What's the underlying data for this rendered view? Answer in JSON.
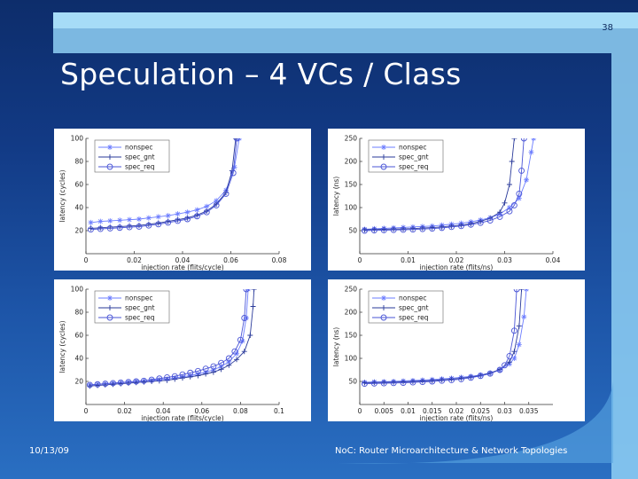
{
  "slide_number": "38",
  "title": "Speculation – 4 VCs / Class",
  "footer": {
    "date": "10/13/09",
    "text": "NoC: Router Microarchitecture & Network Topologies"
  },
  "colors": {
    "background_top": "#0d2d6b",
    "background_bottom": "#2a6fc2",
    "accent_light": "#8fd0f5",
    "series_nonspec": "#6b7cff",
    "series_spec_gnt": "#2a3a9a",
    "series_spec_req": "#4a55d6"
  },
  "chart_data": [
    {
      "type": "line",
      "xlabel": "injection rate (flits/cycle)",
      "ylabel": "latency (cycles)",
      "xlim": [
        0,
        0.08
      ],
      "ylim": [
        0,
        100
      ],
      "xticks": [
        "0",
        "0.02",
        "0.04",
        "0.06",
        "0.08"
      ],
      "yticks": [
        "20",
        "40",
        "60",
        "80",
        "100"
      ],
      "legend": "top-left",
      "series": [
        {
          "name": "nonspec",
          "marker": "star",
          "x": [
            0.002,
            0.006,
            0.01,
            0.014,
            0.018,
            0.022,
            0.026,
            0.03,
            0.034,
            0.038,
            0.042,
            0.046,
            0.05,
            0.054,
            0.058,
            0.0615,
            0.0635
          ],
          "y": [
            27,
            28,
            28.5,
            29,
            29.5,
            30,
            31,
            32,
            33,
            34.5,
            36,
            38,
            41,
            46,
            55,
            75,
            100
          ]
        },
        {
          "name": "spec_gnt",
          "marker": "plus",
          "x": [
            0.002,
            0.006,
            0.01,
            0.014,
            0.018,
            0.022,
            0.026,
            0.03,
            0.034,
            0.038,
            0.042,
            0.046,
            0.05,
            0.054,
            0.058,
            0.0605,
            0.062
          ],
          "y": [
            22,
            22.5,
            23,
            23.5,
            24,
            24.5,
            25.5,
            26.5,
            28,
            29.5,
            31,
            33.5,
            37,
            43,
            53,
            72,
            100
          ]
        },
        {
          "name": "spec_req",
          "marker": "circle",
          "x": [
            0.002,
            0.006,
            0.01,
            0.014,
            0.018,
            0.022,
            0.026,
            0.03,
            0.034,
            0.038,
            0.042,
            0.046,
            0.05,
            0.054,
            0.058,
            0.061,
            0.0625
          ],
          "y": [
            21,
            21.5,
            22,
            22.5,
            23,
            23.5,
            24.5,
            25.5,
            27,
            28.5,
            30,
            32.5,
            36,
            42,
            52,
            70,
            100
          ]
        }
      ]
    },
    {
      "type": "line",
      "xlabel": "injection rate (flits/ns)",
      "ylabel": "latency (ns)",
      "xlim": [
        0,
        0.04
      ],
      "ylim": [
        0,
        250
      ],
      "xticks": [
        "0",
        "0.01",
        "0.02",
        "0.03",
        "0.04"
      ],
      "yticks": [
        "50",
        "100",
        "150",
        "200",
        "250"
      ],
      "legend": "top-left",
      "series": [
        {
          "name": "nonspec",
          "marker": "star",
          "x": [
            0.001,
            0.003,
            0.005,
            0.007,
            0.009,
            0.011,
            0.013,
            0.015,
            0.017,
            0.019,
            0.021,
            0.023,
            0.025,
            0.027,
            0.029,
            0.031,
            0.033,
            0.0345,
            0.0355,
            0.036
          ],
          "y": [
            53,
            54,
            55,
            56,
            57,
            58,
            59,
            60,
            62,
            64,
            66,
            69,
            73,
            78,
            86,
            100,
            120,
            160,
            220,
            250
          ]
        },
        {
          "name": "spec_gnt",
          "marker": "plus",
          "x": [
            0.001,
            0.003,
            0.005,
            0.007,
            0.009,
            0.011,
            0.013,
            0.015,
            0.017,
            0.019,
            0.021,
            0.023,
            0.025,
            0.027,
            0.029,
            0.03,
            0.031,
            0.0315,
            0.032
          ],
          "y": [
            52,
            52.5,
            53,
            53.5,
            54,
            54.5,
            55.5,
            56.5,
            58,
            60,
            62,
            65,
            70,
            77,
            90,
            110,
            150,
            200,
            250
          ]
        },
        {
          "name": "spec_req",
          "marker": "circle",
          "x": [
            0.001,
            0.003,
            0.005,
            0.007,
            0.009,
            0.011,
            0.013,
            0.015,
            0.017,
            0.019,
            0.021,
            0.023,
            0.025,
            0.027,
            0.029,
            0.031,
            0.032,
            0.033,
            0.0335,
            0.034
          ],
          "y": [
            50,
            50.5,
            51,
            51.5,
            52,
            52.5,
            53.5,
            54.5,
            56,
            58,
            60,
            63,
            67,
            72,
            80,
            92,
            105,
            130,
            180,
            250
          ]
        }
      ]
    },
    {
      "type": "line",
      "xlabel": "injection rate (flits/cycle)",
      "ylabel": "latency (cycles)",
      "xlim": [
        0,
        0.1
      ],
      "ylim": [
        0,
        100
      ],
      "xticks": [
        "0",
        "0.02",
        "0.04",
        "0.06",
        "0.08",
        "0.1"
      ],
      "yticks": [
        "20",
        "40",
        "60",
        "80",
        "100"
      ],
      "legend": "top-left",
      "series": [
        {
          "name": "nonspec",
          "marker": "star",
          "x": [
            0.002,
            0.006,
            0.01,
            0.014,
            0.018,
            0.022,
            0.026,
            0.03,
            0.034,
            0.038,
            0.042,
            0.046,
            0.05,
            0.054,
            0.058,
            0.062,
            0.066,
            0.07,
            0.074,
            0.078,
            0.081,
            0.083,
            0.084
          ],
          "y": [
            17,
            17.5,
            18,
            18.5,
            19,
            19.5,
            20,
            20.5,
            21,
            21.5,
            22,
            23,
            24,
            25,
            26.5,
            28,
            30,
            33,
            37,
            44,
            55,
            75,
            100
          ]
        },
        {
          "name": "spec_gnt",
          "marker": "plus",
          "x": [
            0.002,
            0.006,
            0.01,
            0.014,
            0.018,
            0.022,
            0.026,
            0.03,
            0.034,
            0.038,
            0.042,
            0.046,
            0.05,
            0.054,
            0.058,
            0.062,
            0.066,
            0.07,
            0.074,
            0.078,
            0.082,
            0.085,
            0.0865,
            0.087
          ],
          "y": [
            16,
            16.5,
            17,
            17.5,
            18,
            18.5,
            19,
            19.5,
            20,
            20.5,
            21,
            22,
            23,
            24,
            25,
            26.5,
            28,
            30.5,
            34,
            39,
            46,
            60,
            85,
            100
          ]
        },
        {
          "name": "spec_req",
          "marker": "circle",
          "x": [
            0.002,
            0.006,
            0.01,
            0.014,
            0.018,
            0.022,
            0.026,
            0.03,
            0.034,
            0.038,
            0.042,
            0.046,
            0.05,
            0.054,
            0.058,
            0.062,
            0.066,
            0.07,
            0.074,
            0.077,
            0.08,
            0.082,
            0.083
          ],
          "y": [
            17,
            17.5,
            18,
            18.5,
            19,
            19.5,
            20,
            20.5,
            21.5,
            22.5,
            23.5,
            24.5,
            26,
            27.5,
            29,
            31,
            33,
            36,
            40,
            46,
            56,
            75,
            100
          ]
        }
      ]
    },
    {
      "type": "line",
      "xlabel": "injection rate (flits/ns)",
      "ylabel": "latency (ns)",
      "xlim": [
        0,
        0.04
      ],
      "ylim": [
        0,
        250
      ],
      "xticks": [
        "0",
        "0.005",
        "0.01",
        "0.015",
        "0.02",
        "0.025",
        "0.03",
        "0.035"
      ],
      "yticks": [
        "50",
        "100",
        "150",
        "200",
        "250"
      ],
      "legend": "top-left",
      "series": [
        {
          "name": "nonspec",
          "marker": "star",
          "x": [
            0.001,
            0.003,
            0.005,
            0.007,
            0.009,
            0.011,
            0.013,
            0.015,
            0.017,
            0.019,
            0.021,
            0.023,
            0.025,
            0.027,
            0.029,
            0.031,
            0.032,
            0.033,
            0.034,
            0.0345
          ],
          "y": [
            48,
            49,
            49.5,
            50,
            51,
            52,
            53,
            54,
            55.5,
            57,
            59,
            61,
            64,
            68,
            75,
            88,
            100,
            130,
            190,
            250
          ]
        },
        {
          "name": "spec_gnt",
          "marker": "plus",
          "x": [
            0.001,
            0.003,
            0.005,
            0.007,
            0.009,
            0.011,
            0.013,
            0.015,
            0.017,
            0.019,
            0.021,
            0.023,
            0.025,
            0.027,
            0.029,
            0.031,
            0.032,
            0.033,
            0.0335
          ],
          "y": [
            47,
            47.5,
            48,
            48.5,
            49,
            50,
            51,
            52,
            53.5,
            55,
            57,
            59.5,
            63,
            68,
            76,
            92,
            115,
            170,
            250
          ]
        },
        {
          "name": "spec_req",
          "marker": "circle",
          "x": [
            0.001,
            0.003,
            0.005,
            0.007,
            0.009,
            0.011,
            0.013,
            0.015,
            0.017,
            0.019,
            0.021,
            0.023,
            0.025,
            0.027,
            0.029,
            0.03,
            0.031,
            0.032,
            0.0325
          ],
          "y": [
            45,
            45.5,
            46,
            46.5,
            47,
            48,
            49,
            50,
            51.5,
            53,
            55,
            58,
            62,
            67,
            75,
            85,
            105,
            160,
            250
          ]
        }
      ]
    }
  ]
}
